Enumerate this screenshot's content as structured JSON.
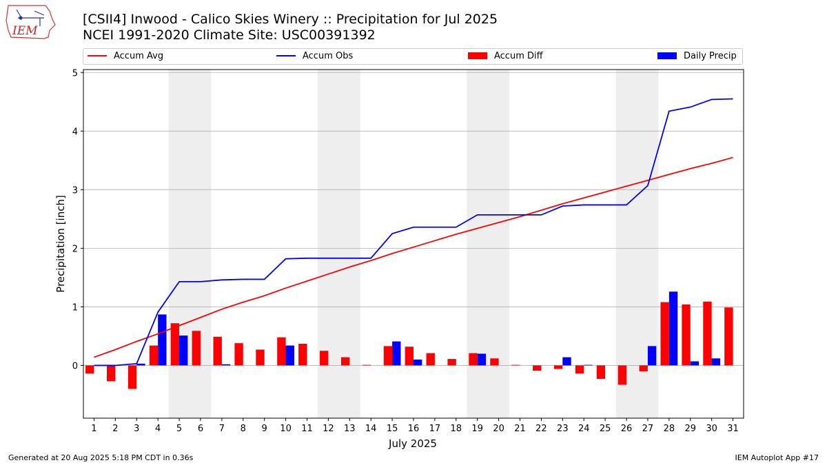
{
  "header": {
    "title": "[CSII4] Inwood - Calico Skies Winery :: Precipitation for Jul 2025",
    "subtitle": "NCEI 1991-2020 Climate Site: USC00391392",
    "logo_text": "IEM"
  },
  "footer": {
    "left": "Generated at 20 Aug 2025 5:18 PM CDT in 0.36s",
    "right": "IEM Autoplot App #17"
  },
  "colors": {
    "avg": "#ff0000",
    "obs": "#0000ff",
    "diff": "#ff0000",
    "daily": "#0000ff",
    "weekend_shade": "#eeeeee",
    "grid": "#b0b0b0"
  },
  "legend": {
    "items": [
      {
        "label": "Accum Avg",
        "kind": "line",
        "color": "#ff0000"
      },
      {
        "label": "Accum Obs",
        "kind": "line",
        "color": "#0000ff"
      },
      {
        "label": "Accum Diff",
        "kind": "bar",
        "color": "#ff0000"
      },
      {
        "label": "Daily Precip",
        "kind": "bar",
        "color": "#0000ff"
      }
    ]
  },
  "chart_data": {
    "type": "bar",
    "xlabel": "July 2025",
    "ylabel": "Precipitation [inch]",
    "xlim": [
      0.5,
      31.5
    ],
    "ylim": [
      -0.9,
      5.05
    ],
    "yticks": [
      0,
      1,
      2,
      3,
      4,
      5
    ],
    "grid": true,
    "legend_placement": "top",
    "weekend_shading": [
      [
        4.5,
        6.5
      ],
      [
        11.5,
        13.5
      ],
      [
        18.5,
        20.5
      ],
      [
        25.5,
        27.5
      ]
    ],
    "categories": [
      "1",
      "2",
      "3",
      "4",
      "5",
      "6",
      "7",
      "8",
      "9",
      "10",
      "11",
      "12",
      "13",
      "14",
      "15",
      "16",
      "17",
      "18",
      "19",
      "20",
      "21",
      "22",
      "23",
      "24",
      "25",
      "26",
      "27",
      "28",
      "29",
      "30",
      "31"
    ],
    "series": [
      {
        "name": "Accum Avg",
        "kind": "line",
        "values": [
          0.14,
          0.27,
          0.41,
          0.54,
          0.68,
          0.82,
          0.96,
          1.08,
          1.19,
          1.32,
          1.44,
          1.56,
          1.68,
          1.79,
          1.91,
          2.02,
          2.13,
          2.24,
          2.34,
          2.44,
          2.54,
          2.65,
          2.76,
          2.86,
          2.96,
          3.06,
          3.16,
          3.26,
          3.36,
          3.45,
          3.55
        ]
      },
      {
        "name": "Accum Obs",
        "kind": "line",
        "values": [
          0.0,
          0.0,
          0.03,
          0.91,
          1.43,
          1.43,
          1.46,
          1.47,
          1.47,
          1.82,
          1.83,
          1.83,
          1.83,
          1.83,
          2.25,
          2.36,
          2.36,
          2.36,
          2.57,
          2.57,
          2.57,
          2.57,
          2.72,
          2.74,
          2.74,
          2.74,
          3.07,
          4.34,
          4.41,
          4.54,
          4.55
        ]
      },
      {
        "name": "Accum Diff",
        "kind": "bar",
        "values": [
          -0.14,
          -0.27,
          -0.4,
          0.34,
          0.72,
          0.59,
          0.49,
          0.38,
          0.27,
          0.48,
          0.37,
          0.25,
          0.14,
          0.01,
          0.33,
          0.32,
          0.21,
          0.11,
          0.21,
          0.12,
          0.01,
          -0.09,
          -0.06,
          -0.14,
          -0.23,
          -0.33,
          -0.1,
          1.08,
          1.04,
          1.09,
          0.99
        ]
      },
      {
        "name": "Daily Precip",
        "kind": "bar",
        "values": [
          0.0,
          0.0,
          0.03,
          0.87,
          0.51,
          0.0,
          0.02,
          0.0,
          0.0,
          0.34,
          0.0,
          0.0,
          0.0,
          0.0,
          0.41,
          0.1,
          0.0,
          0.0,
          0.2,
          0.0,
          0.0,
          0.0,
          0.14,
          0.01,
          0.0,
          0.0,
          0.33,
          1.26,
          0.07,
          0.12,
          0.0
        ]
      }
    ]
  }
}
